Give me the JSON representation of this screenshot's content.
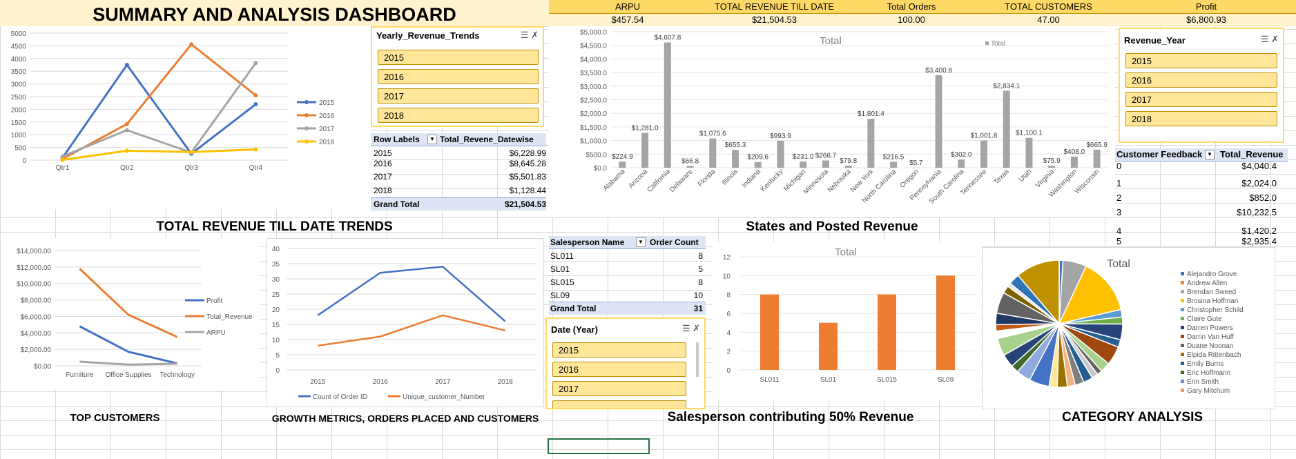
{
  "dashboard_title": "SUMMARY AND ANALYSIS DASHBOARD",
  "kpis": [
    {
      "label": "ARPU",
      "value": "$457.54"
    },
    {
      "label": "TOTAL REVENUE TILL DATE",
      "value": "$21,504.53"
    },
    {
      "label": "Total Orders",
      "value": "100.00"
    },
    {
      "label": "TOTAL CUSTOMERS",
      "value": "47.00"
    },
    {
      "label": "Profit",
      "value": "$6,800.93"
    }
  ],
  "section_titles": {
    "trends": "TOTAL REVENUE TILL DATE TRENDS",
    "states": "States and Posted Revenue",
    "top_customers": "TOP CUSTOMERS",
    "growth": "GROWTH METRICS, ORDERS PLACED AND CUSTOMERS",
    "salesperson": "Salesperson contributing 50% Revenue",
    "category": "CATEGORY ANALYSIS"
  },
  "slicers": {
    "yearly": {
      "title": "Yearly_Revenue_Trends",
      "items": [
        "2015",
        "2016",
        "2017",
        "2018"
      ]
    },
    "revenue_year": {
      "title": "Revenue_Year",
      "items": [
        "2015",
        "2016",
        "2017",
        "2018"
      ]
    },
    "date_year": {
      "title": "Date (Year)",
      "items": [
        "2015",
        "2016",
        "2017"
      ]
    }
  },
  "pivot_yearly": {
    "headers": [
      "Row Labels",
      "Total_Revene_Datewise"
    ],
    "rows": [
      [
        "2015",
        "$6,228.99"
      ],
      [
        "2016",
        "$8,645.28"
      ],
      [
        "2017",
        "$5,501.83"
      ],
      [
        "2018",
        "$1,128.44"
      ]
    ],
    "grand_total": [
      "Grand Total",
      "$21,504.53"
    ]
  },
  "pivot_feedback": {
    "headers": [
      "Customer Feedback",
      "Total_Revenue"
    ],
    "rows": [
      [
        "0",
        "$4,040.4"
      ],
      [
        "1",
        "$2,024.0"
      ],
      [
        "2",
        "$852.0"
      ],
      [
        "3",
        "$10,232.5"
      ],
      [
        "4",
        "$1,420.2"
      ],
      [
        "5",
        "$2,935.4"
      ]
    ]
  },
  "pivot_salesperson": {
    "headers": [
      "Salesperson Name",
      "Order Count"
    ],
    "rows": [
      [
        "SL011",
        "8"
      ],
      [
        "SL01",
        "5"
      ],
      [
        "SL015",
        "8"
      ],
      [
        "SL09",
        "10"
      ]
    ],
    "grand_total": [
      "Grand Total",
      "31"
    ]
  },
  "chart_data": [
    {
      "id": "quarterly",
      "type": "line",
      "categories": [
        "Qtr1",
        "Qtr2",
        "Qtr3",
        "Qtr4"
      ],
      "ylim": [
        0,
        5000
      ],
      "yticks": [
        "0",
        "500",
        "1000",
        "1500",
        "2000",
        "2500",
        "3000",
        "3500",
        "4000",
        "4500",
        "5000"
      ],
      "series": [
        {
          "name": "2015",
          "color": "#4472c4",
          "values": [
            100,
            3750,
            250,
            2200
          ]
        },
        {
          "name": "2016",
          "color": "#ed7d31",
          "values": [
            50,
            1420,
            4560,
            2550
          ]
        },
        {
          "name": "2017",
          "color": "#a5a5a5",
          "values": [
            150,
            1180,
            300,
            3820
          ]
        },
        {
          "name": "2018",
          "color": "#ffc000",
          "values": [
            10,
            370,
            320,
            420
          ]
        }
      ]
    },
    {
      "id": "states",
      "type": "bar",
      "title": "Total",
      "legend": "Total",
      "ylim": [
        0,
        5000
      ],
      "yticks": [
        "$0.0",
        "$500.0",
        "$1,000.0",
        "$1,500.0",
        "$2,000.0",
        "$2,500.0",
        "$3,000.0",
        "$3,500.0",
        "$4,000.0",
        "$4,500.0",
        "$5,000.0"
      ],
      "categories": [
        "Alabama",
        "Arizona",
        "California",
        "Delaware",
        "Florida",
        "Illinois",
        "Indiana",
        "Kentucky",
        "Michigan",
        "Minnesota",
        "Nebraska",
        "New York",
        "North Carolina",
        "Oregon",
        "Pennsylvania",
        "South Carolina",
        "Tennessee",
        "Texas",
        "Utah",
        "Virginia",
        "Washington",
        "Wisconsin"
      ],
      "values": [
        224.9,
        1281.0,
        4607.8,
        66.8,
        1075.6,
        655.3,
        209.6,
        993.9,
        231.0,
        266.7,
        79.8,
        1801.4,
        216.5,
        5.7,
        3400.8,
        302.0,
        1001.8,
        2834.1,
        1100.1,
        75.9,
        408.0,
        665.9
      ],
      "labels": [
        "$224.9",
        "$1,281.0",
        "$4,607.8",
        "$66.8",
        "$1,075.6",
        "$655.3",
        "$209.6",
        "$993.9",
        "$231.0",
        "$266.7",
        "$79.8",
        "$1,801.4",
        "$216.5",
        "$5.7",
        "$3,400.8",
        "$302.0",
        "$1,001.8",
        "$2,834.1",
        "$1,100.1",
        "$75.9",
        "$408.0",
        "$665.9"
      ]
    },
    {
      "id": "top_customers",
      "type": "line",
      "categories": [
        "Furniture",
        "Office Supplies",
        "Technology"
      ],
      "ylim": [
        0,
        14000
      ],
      "yticks": [
        "$0.00",
        "$2,000.00",
        "$4,000.00",
        "$6,000.00",
        "$8,000.00",
        "$10,000.00",
        "$12,000.00",
        "$14,000.00"
      ],
      "series": [
        {
          "name": "Profit",
          "color": "#4472c4",
          "values": [
            4800,
            1700,
            300
          ]
        },
        {
          "name": "Total_Revenue",
          "color": "#ed7d31",
          "values": [
            11800,
            6200,
            3500
          ]
        },
        {
          "name": "ARPU",
          "color": "#a5a5a5",
          "values": [
            500,
            150,
            250
          ]
        }
      ]
    },
    {
      "id": "growth",
      "type": "line",
      "categories": [
        "2015",
        "2016",
        "2017",
        "2018"
      ],
      "ylim": [
        0,
        40
      ],
      "yticks": [
        "0",
        "5",
        "10",
        "15",
        "20",
        "25",
        "30",
        "35",
        "40"
      ],
      "series": [
        {
          "name": "Count of Order ID",
          "color": "#4472c4",
          "values": [
            18,
            32,
            34,
            16
          ]
        },
        {
          "name": "Unique_customer_Number",
          "color": "#ed7d31",
          "values": [
            8,
            11,
            18,
            13
          ]
        }
      ]
    },
    {
      "id": "salesperson",
      "type": "bar",
      "title": "Total",
      "categories": [
        "SL011",
        "SL01",
        "SL015",
        "SL09"
      ],
      "values": [
        8,
        5,
        8,
        10
      ],
      "ylim": [
        0,
        12
      ],
      "yticks": [
        "0",
        "2",
        "4",
        "6",
        "8",
        "10",
        "12"
      ],
      "color": "#ed7d31"
    },
    {
      "id": "category",
      "type": "pie",
      "title": "Total",
      "legend": [
        "Alejandro Grove",
        "Andrew Allen",
        "Brendan Sweed",
        "Brosina Hoffman",
        "Christopher Schild",
        "Claire Gute",
        "Darren Powers",
        "Darrin Van Huff",
        "Duane Noonan",
        "Elpida Rittenbach",
        "Emily Burns",
        "Eric Hoffmann",
        "Erin Smith",
        "Gary Mitchum"
      ],
      "legend_colors": [
        "#4472c4",
        "#ed7d31",
        "#a5a5a5",
        "#ffc000",
        "#5b9bd5",
        "#70ad47",
        "#264478",
        "#9e480e",
        "#636363",
        "#997300",
        "#255e91",
        "#43682b",
        "#698ed0",
        "#f1975a"
      ],
      "values": [
        1.2,
        7.5,
        18,
        2.4,
        2.2,
        5,
        2.4,
        6,
        3.2,
        1.6,
        2,
        3,
        2.8,
        2.5,
        3.2,
        2.6,
        6.4,
        4.6,
        2.5,
        4.2,
        5.6,
        2.4,
        2,
        3.6,
        6.8,
        2.4,
        1.2,
        3.5,
        14
      ],
      "colors": [
        "#4472c4",
        "#a5a5a5",
        "#ffc000",
        "#5b9bd5",
        "#70ad47",
        "#264478",
        "#255e91",
        "#9e480e",
        "#a9d18e",
        "#636363",
        "#c9c9c9",
        "#255e91",
        "#7f7f7f",
        "#f4b183",
        "#997300",
        "#ffe699",
        "#4472c4",
        "#8faadc",
        "#43682b",
        "#264478",
        "#a9d18e",
        "#ffffff",
        "#c55a11",
        "#203864",
        "#636363",
        "#7f6000",
        "#e7e6e6",
        "#2e75b6",
        "#bf9000"
      ]
    }
  ]
}
